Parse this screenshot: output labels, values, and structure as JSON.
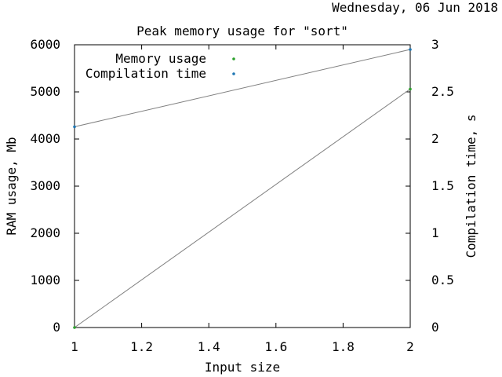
{
  "timestamp": "Wednesday, 06 Jun 2018",
  "chart_data": {
    "type": "scatter",
    "title": "Peak memory usage for \"sort\"",
    "xlabel": "Input size",
    "ylabel": "RAM usage, Mb",
    "y2label": "Compilation time, s",
    "xlim": [
      1,
      2
    ],
    "ylim": [
      0,
      6000
    ],
    "y2lim": [
      0,
      3
    ],
    "xticks": [
      "1",
      "1.2",
      "1.4",
      "1.6",
      "1.8",
      "2"
    ],
    "yticks": [
      "0",
      "1000",
      "2000",
      "3000",
      "4000",
      "5000",
      "6000"
    ],
    "y2ticks": [
      "0",
      "0.5",
      "1",
      "1.5",
      "2",
      "2.5",
      "3"
    ],
    "grid": false,
    "legend_position": "top-left",
    "series": [
      {
        "name": "Memory usage",
        "axis": "y",
        "color": "#2ca02c",
        "x": [
          1,
          2
        ],
        "y": [
          0,
          5060
        ]
      },
      {
        "name": "Compilation time",
        "axis": "y2",
        "color": "#1f77b4",
        "x": [
          1,
          2
        ],
        "y": [
          2.13,
          2.95
        ]
      }
    ]
  }
}
